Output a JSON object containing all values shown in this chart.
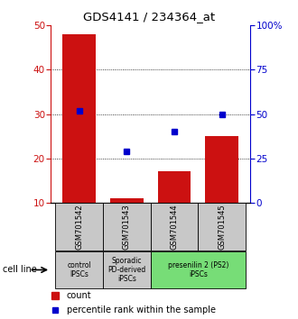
{
  "title": "GDS4141 / 234364_at",
  "samples": [
    "GSM701542",
    "GSM701543",
    "GSM701544",
    "GSM701545"
  ],
  "counts": [
    48,
    11,
    17,
    25
  ],
  "percentiles": [
    52,
    29,
    40,
    50
  ],
  "ylim_left": [
    10,
    50
  ],
  "ylim_right": [
    0,
    100
  ],
  "yticks_left": [
    10,
    20,
    30,
    40,
    50
  ],
  "yticks_right_vals": [
    0,
    25,
    50,
    75,
    100
  ],
  "yticks_right_labels": [
    "0",
    "25",
    "50",
    "75",
    "100%"
  ],
  "bar_color": "#cc1111",
  "dot_color": "#0000cc",
  "background_samples": "#c8c8c8",
  "group_labels": [
    {
      "label": "control\nIPSCs",
      "start": 0,
      "end": 0,
      "color": "#c8c8c8"
    },
    {
      "label": "Sporadic\nPD-derived\niPSCs",
      "start": 1,
      "end": 1,
      "color": "#c8c8c8"
    },
    {
      "label": "presenilin 2 (PS2)\niPSCs",
      "start": 2,
      "end": 3,
      "color": "#77dd77"
    }
  ],
  "cell_line_label": "cell line",
  "legend_count": "count",
  "legend_percentile": "percentile rank within the sample",
  "grid_yticks": [
    20,
    30,
    40
  ],
  "bar_width": 0.7
}
